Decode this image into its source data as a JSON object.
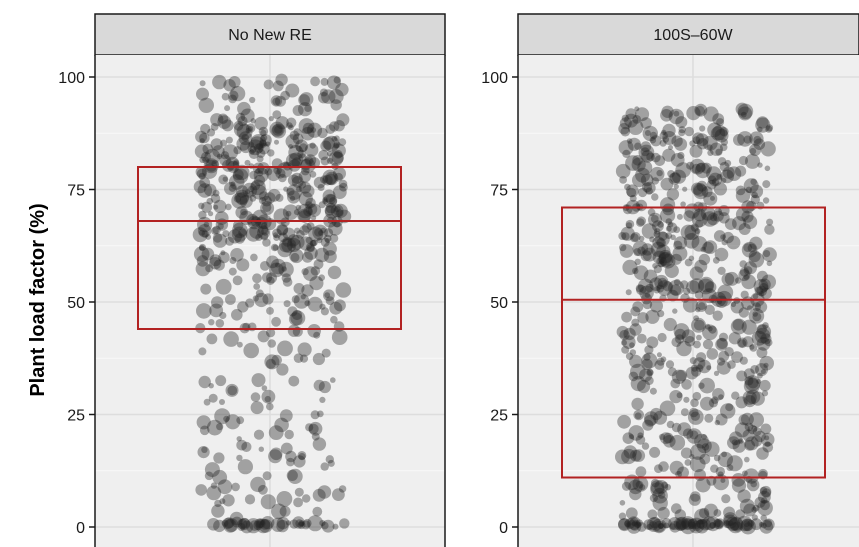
{
  "chart_data": {
    "type": "scatter",
    "subtype": "jitter-with-boxplot",
    "ylabel": "Plant load factor (%)",
    "xlabel": "",
    "ylim": [
      -3,
      112
    ],
    "yticks": [
      0,
      25,
      50,
      75,
      100
    ],
    "ytick_labels": [
      "0",
      "25",
      "50",
      "75",
      "100"
    ],
    "grid": true,
    "point_color": "#222222",
    "box_color": "#B22222",
    "panel_background": "#EFEFEF",
    "strip_background": "#D9D9D9",
    "panels": [
      {
        "title": "No New RE",
        "box": {
          "q1": 44,
          "median": 68,
          "q3": 80
        },
        "distribution": [
          {
            "range": [
              0,
              1
            ],
            "count": 40
          },
          {
            "range": [
              1,
              22
            ],
            "count": 60
          },
          {
            "range": [
              22,
              44
            ],
            "count": 55
          },
          {
            "range": [
              44,
              62
            ],
            "count": 90
          },
          {
            "range": [
              62,
              90
            ],
            "count": 330
          },
          {
            "range": [
              90,
              100
            ],
            "count": 45
          }
        ]
      },
      {
        "title": "100S–60W",
        "box": {
          "q1": 11,
          "median": 50.5,
          "q3": 71
        },
        "distribution": [
          {
            "range": [
              0,
              1
            ],
            "count": 75
          },
          {
            "range": [
              1,
              25
            ],
            "count": 150
          },
          {
            "range": [
              25,
              50
            ],
            "count": 160
          },
          {
            "range": [
              50,
              70
            ],
            "count": 170
          },
          {
            "range": [
              70,
              93
            ],
            "count": 180
          }
        ]
      }
    ]
  }
}
